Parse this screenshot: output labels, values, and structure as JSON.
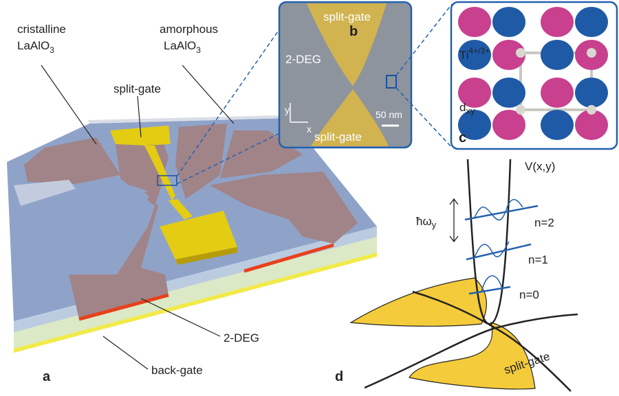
{
  "panel_a": {
    "letter": "a",
    "cristalline": {
      "line1": "cristalline",
      "line2": "LaAlO",
      "sub": "3"
    },
    "amorphous": {
      "line1": "amorphous",
      "line2": "LaAlO",
      "sub": "3"
    },
    "split_gate": "split-gate",
    "two_deg": "2-DEG",
    "back_gate": "back-gate"
  },
  "panel_b": {
    "letter": "b",
    "top_gate": "split-gate",
    "bottom_gate": "split-gate",
    "two_deg": "2-DEG",
    "axis_y": "y",
    "axis_x": "x",
    "scale": "50 nm"
  },
  "panel_c": {
    "letter": "c",
    "ti": "Ti",
    "ti_sup": "4+/3+",
    "orbital": "d",
    "orbital_sub": "xy"
  },
  "panel_d": {
    "letter": "d",
    "potential": "V(x,y)",
    "energy": "ħω",
    "energy_sub": "y",
    "levels": [
      "n=2",
      "n=1",
      "n=0"
    ],
    "split_gate": "split-gate"
  }
}
